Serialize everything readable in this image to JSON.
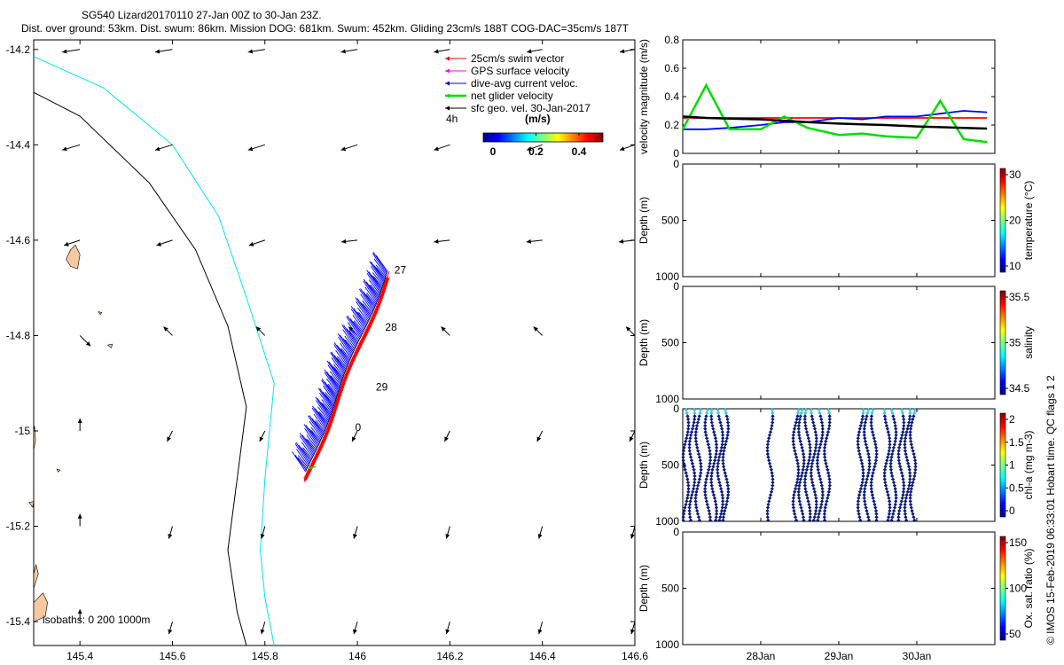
{
  "title": {
    "line1": "SG540 Lizard20170110 27-Jan 00Z to 30-Jan 23Z.",
    "line2": "Dist. over ground: 53km. Dist. swum: 86km. Mission DOG: 681km. Swum: 452km. Gliding 23cm/s 188T COG-DAC=35cm/s 187T"
  },
  "side_credit": "© IMOS 15-Feb-2019 06:33:01 Hobart time. QC flags 1 2",
  "colors": {
    "swim": "#ff0000",
    "gps": "#ff00ff",
    "dac": "#0000ff",
    "net": "#00dd00",
    "sfc": "#000000",
    "isobath_200": "#00e5ee",
    "isobath_1000": "#000000",
    "land": "#f5c8a0"
  },
  "map": {
    "xlim": [
      145.3,
      146.6
    ],
    "ylim": [
      -15.45,
      -14.18
    ],
    "xticks": [
      "145.4",
      "145.6",
      "145.8",
      "146",
      "146.2",
      "146.4",
      "146.6"
    ],
    "yticks": [
      "-14.2",
      "-14.4",
      "-14.6",
      "-14.8",
      "-15",
      "-15.2",
      "-15.4"
    ],
    "legend": [
      {
        "label": "25cm/s swim vector",
        "color": "#ff0000"
      },
      {
        "label": "GPS surface velocity",
        "color": "#ff00ff"
      },
      {
        "label": "dive-avg current veloc.",
        "color": "#0000ff"
      },
      {
        "label": "net glider velocity",
        "color": "#00dd00"
      },
      {
        "label": "sfc geo. vel. 30-Jan-2017",
        "color": "#000000"
      }
    ],
    "legend_4h": "4h",
    "colorbar_title": "(m/s)",
    "colorbar_ticks": [
      "0",
      "0.2",
      "0.4"
    ],
    "isobath_label": "isobaths: 0   200  1000m",
    "day_labels": [
      {
        "text": "27",
        "lon": 146.08,
        "lat": -14.67
      },
      {
        "text": "28",
        "lon": 146.06,
        "lat": -14.79
      },
      {
        "text": "29",
        "lon": 146.04,
        "lat": -14.915
      },
      {
        "text": "0",
        "lon": 145.995,
        "lat": -15.0
      }
    ]
  },
  "chart_data": [
    {
      "type": "line",
      "title": "",
      "xlabel": "",
      "ylabel": "velocity magnitude (m/s)",
      "ylim": [
        0,
        0.8
      ],
      "yticks": [
        "0",
        "0.2",
        "0.4",
        "0.6",
        "0.8"
      ],
      "x": [
        27.0,
        27.3,
        27.6,
        28.0,
        28.3,
        28.6,
        29.0,
        29.3,
        29.6,
        30.0,
        30.3,
        30.6,
        30.9
      ],
      "series": [
        {
          "name": "25cm/s swim vector",
          "color": "#ff0000",
          "values": [
            0.25,
            0.25,
            0.25,
            0.25,
            0.25,
            0.25,
            0.25,
            0.25,
            0.25,
            0.25,
            0.25,
            0.25,
            0.25
          ]
        },
        {
          "name": "dive-avg current veloc.",
          "color": "#0000ff",
          "values": [
            0.17,
            0.17,
            0.18,
            0.2,
            0.22,
            0.22,
            0.25,
            0.24,
            0.26,
            0.26,
            0.28,
            0.3,
            0.29
          ]
        },
        {
          "name": "net glider velocity",
          "color": "#00dd00",
          "values": [
            0.17,
            0.48,
            0.17,
            0.17,
            0.26,
            0.18,
            0.13,
            0.14,
            0.12,
            0.11,
            0.37,
            0.1,
            0.08
          ]
        },
        {
          "name": "trend",
          "color": "#000000",
          "values": [
            0.26,
            0.25,
            0.245,
            0.24,
            0.23,
            0.22,
            0.21,
            0.205,
            0.2,
            0.19,
            0.185,
            0.18,
            0.175
          ]
        }
      ]
    },
    {
      "type": "scatter",
      "ylabel": "Depth (m)",
      "ylim": [
        1000,
        0
      ],
      "yticks": [
        "0",
        "500",
        "1000"
      ],
      "colorbar_label": "temperature (°C)",
      "colorbar_ticks": [
        "10",
        "20",
        "30"
      ]
    },
    {
      "type": "scatter",
      "ylabel": "Depth (m)",
      "ylim": [
        1000,
        0
      ],
      "yticks": [
        "0",
        "500",
        "1000"
      ],
      "colorbar_label": "salinity",
      "colorbar_ticks": [
        "34.5",
        "35",
        "35.5"
      ]
    },
    {
      "type": "scatter",
      "ylabel": "Depth (m)",
      "ylim": [
        1000,
        0
      ],
      "yticks": [
        "0",
        "500",
        "1000"
      ],
      "colorbar_label": "chl-a (mg m-3)",
      "colorbar_ticks": [
        "0",
        "0.5",
        "1",
        "1.5",
        "2"
      ],
      "profile_days": [
        27.04,
        27.12,
        27.2,
        27.32,
        27.4,
        27.48,
        27.55,
        28.12,
        28.45,
        28.52,
        28.6,
        28.68,
        28.76,
        28.85,
        29.28,
        29.36,
        29.45,
        29.62,
        29.7,
        29.8,
        29.88,
        29.95
      ],
      "profile_max_depth_m": [
        1000,
        1000,
        1000,
        1000,
        1000,
        1000,
        1000,
        1000,
        1000,
        1000,
        1000,
        1000,
        1000,
        1000,
        1000,
        1000,
        1000,
        1000,
        1000,
        1000,
        1000,
        1000
      ]
    },
    {
      "type": "scatter",
      "ylabel": "Depth (m)",
      "ylim": [
        1000,
        0
      ],
      "yticks": [
        "0",
        "500",
        "1000"
      ],
      "colorbar_label": "Ox. sat. ratio (%)",
      "colorbar_ticks": [
        "50",
        "100",
        "150"
      ],
      "xticks": [
        "28Jan",
        "29Jan",
        "30Jan"
      ]
    }
  ]
}
